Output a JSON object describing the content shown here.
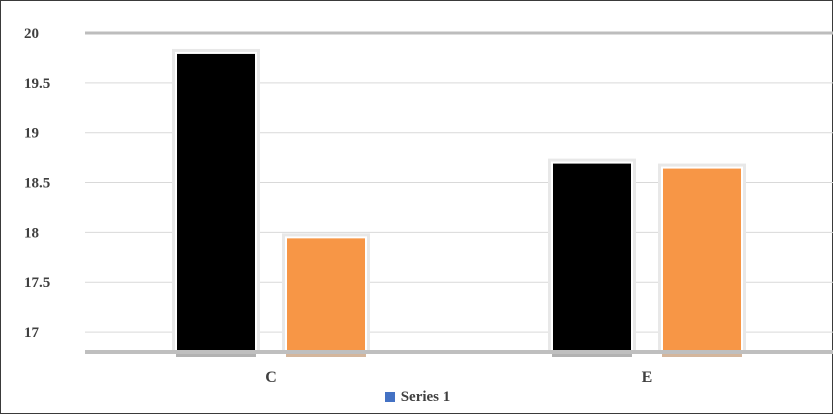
{
  "chart_data": {
    "type": "bar",
    "categories": [
      "C",
      "E"
    ],
    "series": [
      {
        "name": "Series 1",
        "values": [
          19.8,
          18.7
        ],
        "color": "#000000"
      },
      {
        "values": [
          17.95,
          18.65
        ],
        "color": "#f79646"
      }
    ],
    "ylim": [
      16.8,
      20
    ],
    "yticks": [
      "17",
      "17.5",
      "18",
      "18.5",
      "19",
      "19.5",
      "20"
    ],
    "grid": true,
    "legend_position": "bottom",
    "legend": [
      {
        "label": "Series 1",
        "color": "#4472c4"
      }
    ]
  }
}
